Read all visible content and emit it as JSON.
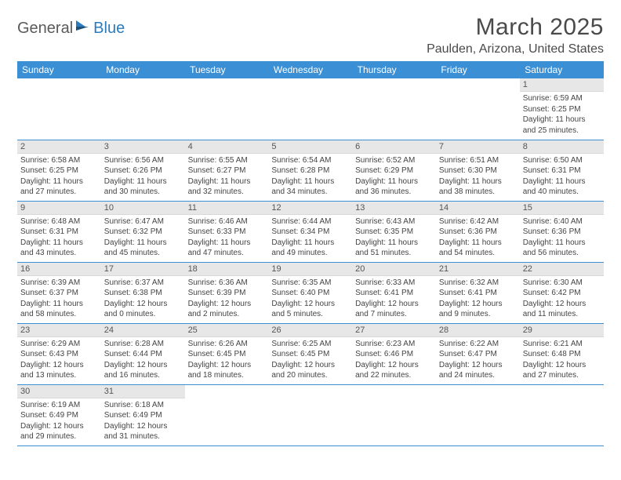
{
  "logo": {
    "text1": "General",
    "text2": "Blue"
  },
  "header": {
    "title": "March 2025",
    "location": "Paulden, Arizona, United States"
  },
  "calendar": {
    "header_bg": "#3b8fd4",
    "header_fg": "#ffffff",
    "daynum_bg": "#e7e7e7",
    "border_color": "#3b8fd4",
    "weekdays": [
      "Sunday",
      "Monday",
      "Tuesday",
      "Wednesday",
      "Thursday",
      "Friday",
      "Saturday"
    ],
    "first_weekday_index": 6,
    "days": [
      {
        "n": 1,
        "sunrise": "6:59 AM",
        "sunset": "6:25 PM",
        "daylight": "11 hours and 25 minutes."
      },
      {
        "n": 2,
        "sunrise": "6:58 AM",
        "sunset": "6:25 PM",
        "daylight": "11 hours and 27 minutes."
      },
      {
        "n": 3,
        "sunrise": "6:56 AM",
        "sunset": "6:26 PM",
        "daylight": "11 hours and 30 minutes."
      },
      {
        "n": 4,
        "sunrise": "6:55 AM",
        "sunset": "6:27 PM",
        "daylight": "11 hours and 32 minutes."
      },
      {
        "n": 5,
        "sunrise": "6:54 AM",
        "sunset": "6:28 PM",
        "daylight": "11 hours and 34 minutes."
      },
      {
        "n": 6,
        "sunrise": "6:52 AM",
        "sunset": "6:29 PM",
        "daylight": "11 hours and 36 minutes."
      },
      {
        "n": 7,
        "sunrise": "6:51 AM",
        "sunset": "6:30 PM",
        "daylight": "11 hours and 38 minutes."
      },
      {
        "n": 8,
        "sunrise": "6:50 AM",
        "sunset": "6:31 PM",
        "daylight": "11 hours and 40 minutes."
      },
      {
        "n": 9,
        "sunrise": "6:48 AM",
        "sunset": "6:31 PM",
        "daylight": "11 hours and 43 minutes."
      },
      {
        "n": 10,
        "sunrise": "6:47 AM",
        "sunset": "6:32 PM",
        "daylight": "11 hours and 45 minutes."
      },
      {
        "n": 11,
        "sunrise": "6:46 AM",
        "sunset": "6:33 PM",
        "daylight": "11 hours and 47 minutes."
      },
      {
        "n": 12,
        "sunrise": "6:44 AM",
        "sunset": "6:34 PM",
        "daylight": "11 hours and 49 minutes."
      },
      {
        "n": 13,
        "sunrise": "6:43 AM",
        "sunset": "6:35 PM",
        "daylight": "11 hours and 51 minutes."
      },
      {
        "n": 14,
        "sunrise": "6:42 AM",
        "sunset": "6:36 PM",
        "daylight": "11 hours and 54 minutes."
      },
      {
        "n": 15,
        "sunrise": "6:40 AM",
        "sunset": "6:36 PM",
        "daylight": "11 hours and 56 minutes."
      },
      {
        "n": 16,
        "sunrise": "6:39 AM",
        "sunset": "6:37 PM",
        "daylight": "11 hours and 58 minutes."
      },
      {
        "n": 17,
        "sunrise": "6:37 AM",
        "sunset": "6:38 PM",
        "daylight": "12 hours and 0 minutes."
      },
      {
        "n": 18,
        "sunrise": "6:36 AM",
        "sunset": "6:39 PM",
        "daylight": "12 hours and 2 minutes."
      },
      {
        "n": 19,
        "sunrise": "6:35 AM",
        "sunset": "6:40 PM",
        "daylight": "12 hours and 5 minutes."
      },
      {
        "n": 20,
        "sunrise": "6:33 AM",
        "sunset": "6:41 PM",
        "daylight": "12 hours and 7 minutes."
      },
      {
        "n": 21,
        "sunrise": "6:32 AM",
        "sunset": "6:41 PM",
        "daylight": "12 hours and 9 minutes."
      },
      {
        "n": 22,
        "sunrise": "6:30 AM",
        "sunset": "6:42 PM",
        "daylight": "12 hours and 11 minutes."
      },
      {
        "n": 23,
        "sunrise": "6:29 AM",
        "sunset": "6:43 PM",
        "daylight": "12 hours and 13 minutes."
      },
      {
        "n": 24,
        "sunrise": "6:28 AM",
        "sunset": "6:44 PM",
        "daylight": "12 hours and 16 minutes."
      },
      {
        "n": 25,
        "sunrise": "6:26 AM",
        "sunset": "6:45 PM",
        "daylight": "12 hours and 18 minutes."
      },
      {
        "n": 26,
        "sunrise": "6:25 AM",
        "sunset": "6:45 PM",
        "daylight": "12 hours and 20 minutes."
      },
      {
        "n": 27,
        "sunrise": "6:23 AM",
        "sunset": "6:46 PM",
        "daylight": "12 hours and 22 minutes."
      },
      {
        "n": 28,
        "sunrise": "6:22 AM",
        "sunset": "6:47 PM",
        "daylight": "12 hours and 24 minutes."
      },
      {
        "n": 29,
        "sunrise": "6:21 AM",
        "sunset": "6:48 PM",
        "daylight": "12 hours and 27 minutes."
      },
      {
        "n": 30,
        "sunrise": "6:19 AM",
        "sunset": "6:49 PM",
        "daylight": "12 hours and 29 minutes."
      },
      {
        "n": 31,
        "sunrise": "6:18 AM",
        "sunset": "6:49 PM",
        "daylight": "12 hours and 31 minutes."
      }
    ],
    "labels": {
      "sunrise": "Sunrise:",
      "sunset": "Sunset:",
      "daylight": "Daylight:"
    }
  }
}
